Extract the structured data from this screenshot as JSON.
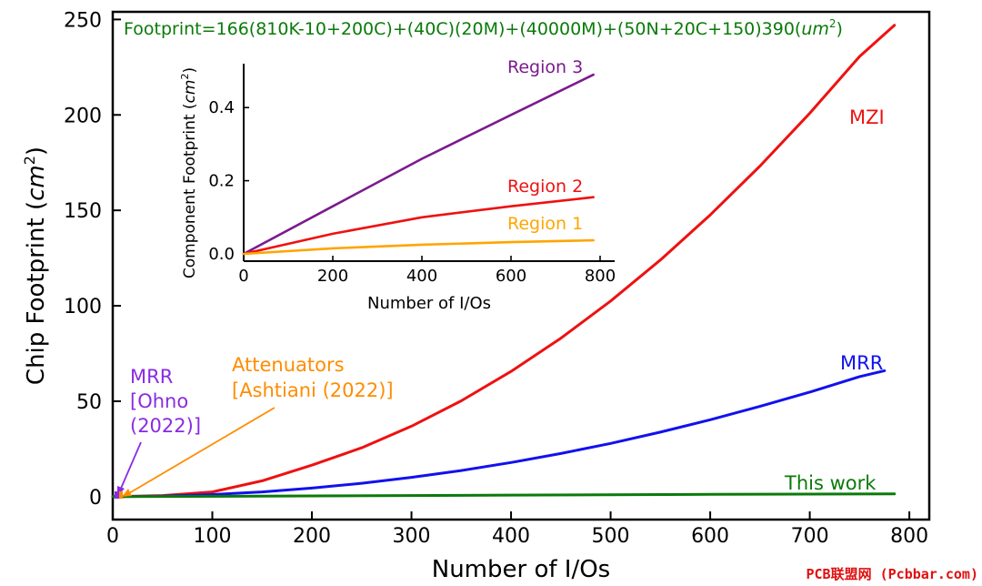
{
  "chart_data": [
    {
      "type": "line",
      "title": "Footprint=166(810K-10+200C)+(40C)(20M)+(40000M)+(50N+20C+150)390(um²)",
      "title_parts": {
        "base": "Footprint=166(810K-10+200C)+(40C)(20M)+(40000M)+(50N+20C+150)390(",
        "unit": "um",
        "sup": "2",
        "close": ")"
      },
      "xlabel": "Number of I/Os",
      "ylabel": "Chip Footprint",
      "ylabel_unit": "cm",
      "ylabel_sup": "2",
      "xlim": [
        0,
        820
      ],
      "ylim": [
        -12,
        254
      ],
      "xticks": [
        0,
        100,
        200,
        300,
        400,
        500,
        600,
        700,
        800
      ],
      "yticks": [
        0,
        50,
        100,
        150,
        200,
        250
      ],
      "series": [
        {
          "name": "MZI",
          "color": "#ee1111",
          "x": [
            0,
            50,
            100,
            150,
            200,
            250,
            300,
            350,
            400,
            450,
            500,
            550,
            600,
            650,
            700,
            750,
            785
          ],
          "y": [
            0,
            0.6,
            2.5,
            8.3,
            16.5,
            25.6,
            36.9,
            50.2,
            65.6,
            83,
            102.5,
            124,
            147.6,
            173.2,
            200.9,
            230.6,
            247
          ]
        },
        {
          "name": "MRR",
          "color": "#1111ee",
          "x": [
            0,
            50,
            100,
            150,
            200,
            250,
            300,
            350,
            400,
            450,
            500,
            550,
            600,
            650,
            700,
            750,
            775
          ],
          "y": [
            0,
            0.3,
            1.1,
            2.5,
            4.5,
            7,
            10.1,
            13.7,
            17.9,
            22.6,
            27.9,
            33.8,
            40.3,
            47.3,
            54.8,
            62.9,
            66
          ]
        },
        {
          "name": "This work",
          "color": "#0a7a0a",
          "x": [
            0,
            200,
            400,
            600,
            785
          ],
          "y": [
            0,
            0.4,
            0.8,
            1.2,
            1.5
          ]
        }
      ],
      "annotations": [
        {
          "name": "mrr-ohno",
          "lines": [
            "MRR",
            "[Ohno",
            "(2022)]"
          ],
          "color": "#8a2be2",
          "target": [
            3,
            1
          ]
        },
        {
          "name": "attenuators-ashtiani",
          "lines": [
            "Attenuators",
            "[Ashtiani (2022)]"
          ],
          "color": "#ff8c00",
          "target": [
            8,
            0.5
          ]
        }
      ]
    },
    {
      "type": "line",
      "title": "",
      "xlabel": "Number of I/Os",
      "ylabel": "Component Footprint",
      "ylabel_unit": "cm",
      "ylabel_sup": "2",
      "xlim": [
        0,
        800
      ],
      "ylim": [
        -0.02,
        0.52
      ],
      "xticks": [
        0,
        200,
        400,
        600,
        800
      ],
      "yticks": [
        0.0,
        0.2,
        0.4
      ],
      "ytick_labels": [
        "0.0",
        "0.2",
        "0.4"
      ],
      "series": [
        {
          "name": "Region 3",
          "color": "#7b1a8e",
          "x": [
            0,
            200,
            400,
            600,
            785
          ],
          "y": [
            0,
            0.13,
            0.26,
            0.38,
            0.49
          ]
        },
        {
          "name": "Region 2",
          "color": "#ee1111",
          "x": [
            0,
            200,
            400,
            600,
            785
          ],
          "y": [
            0,
            0.055,
            0.1,
            0.13,
            0.155
          ]
        },
        {
          "name": "Region 1",
          "color": "#ffa500",
          "x": [
            0,
            200,
            400,
            600,
            785
          ],
          "y": [
            0,
            0.015,
            0.025,
            0.032,
            0.037
          ]
        }
      ]
    }
  ],
  "watermark": "PCB联盟网 (Pcbbar.com)",
  "colors": {
    "axis": "#000000",
    "title": "#0a7a0a",
    "watermark": "#e01010"
  }
}
